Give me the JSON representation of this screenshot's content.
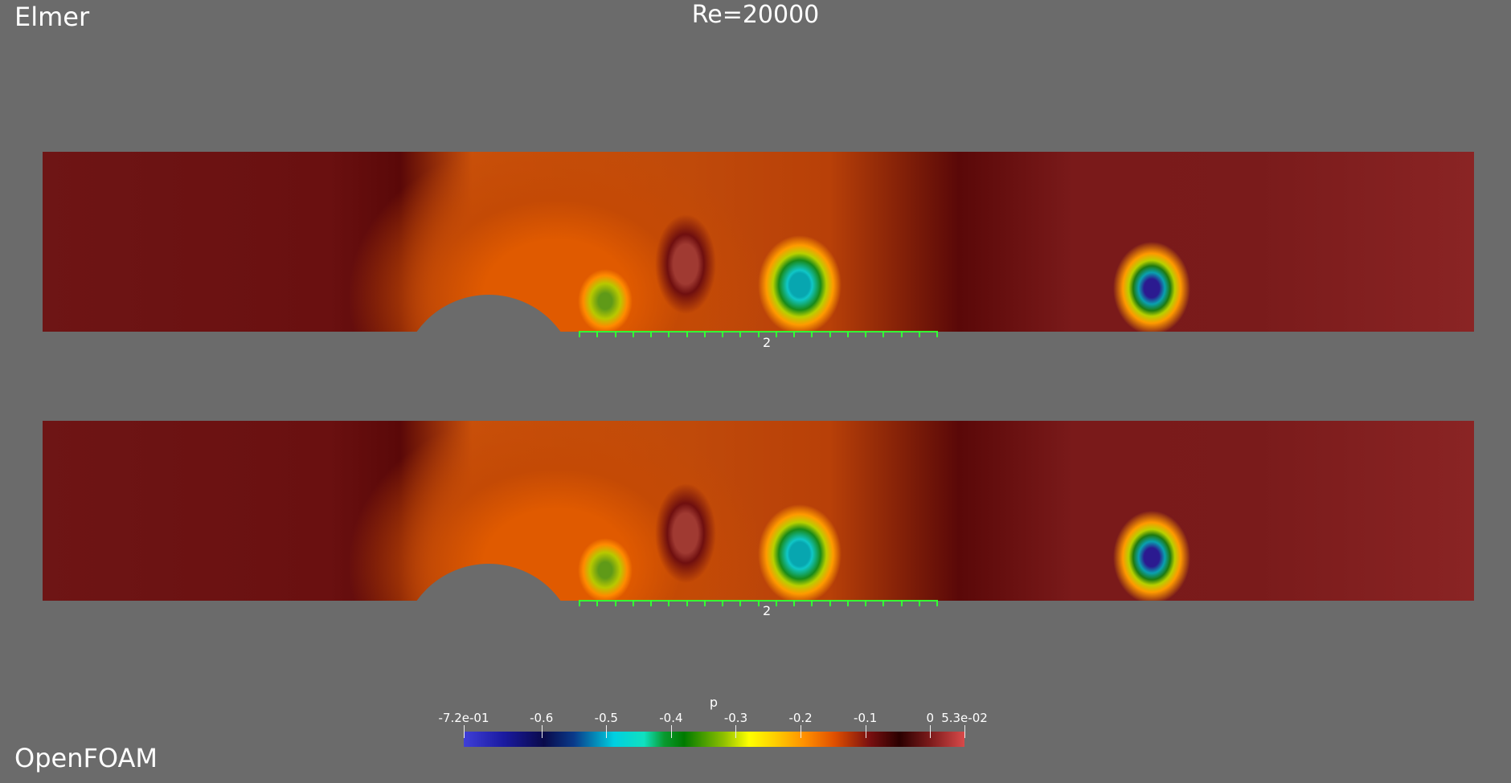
{
  "labels": {
    "elmer": "Elmer",
    "title": "Re=20000",
    "openfoam": "OpenFOAM"
  },
  "scale_bar": {
    "label": "2",
    "color": "#34ff34"
  },
  "colorbar": {
    "title": "p",
    "tick_labels": [
      "-7.2e-01",
      "-0.6",
      "-0.5",
      "-0.4",
      "-0.3",
      "-0.2",
      "-0.1",
      "0",
      "5.3e-02"
    ],
    "range": [
      -0.72,
      0.053
    ]
  },
  "colors": {
    "background": "#6b6b6b",
    "scale_bar": "#34ff34"
  }
}
